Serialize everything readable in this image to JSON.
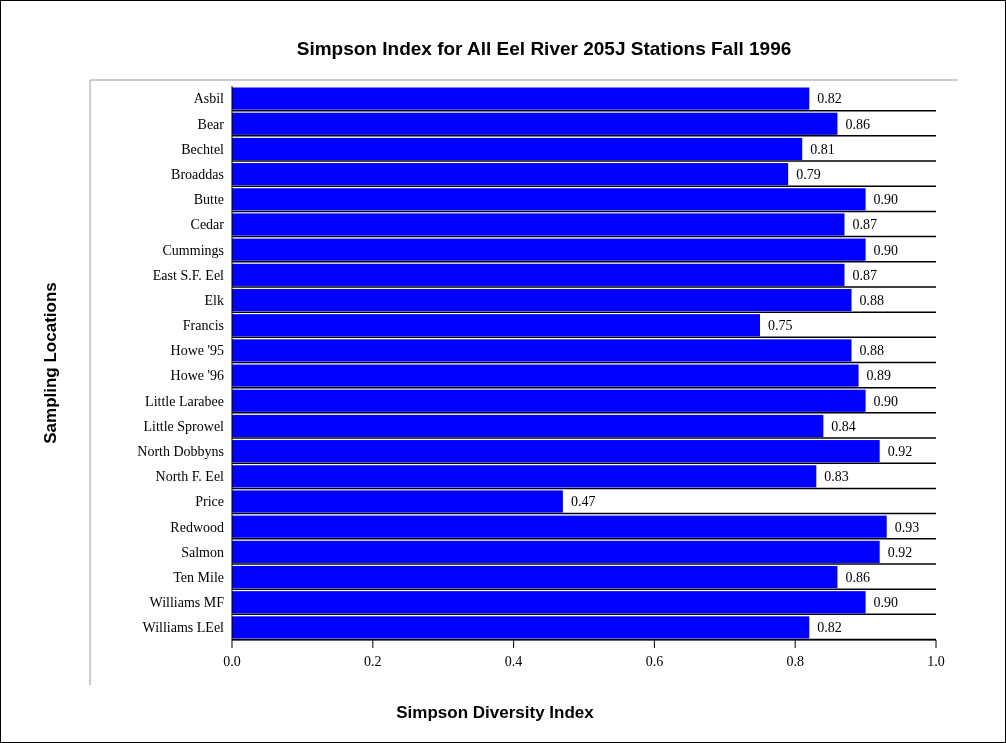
{
  "chart_data": {
    "type": "bar",
    "orientation": "horizontal",
    "title": "Simpson Index for All Eel River 205J Stations Fall 1996",
    "xlabel": "Simpson Diversity Index",
    "ylabel": "Sampling Locations",
    "categories": [
      "Asbil",
      "Bear",
      "Bechtel",
      "Broaddas",
      "Butte",
      "Cedar",
      "Cummings",
      "East S.F. Eel",
      "Elk",
      "Francis",
      "Howe '95",
      "Howe '96",
      "Little Larabee",
      "Little Sprowel",
      "North Dobbyns",
      "North F. Eel",
      "Price",
      "Redwood",
      "Salmon",
      "Ten Mile",
      "Williams MF",
      "Williams LEel"
    ],
    "values": [
      0.82,
      0.86,
      0.81,
      0.79,
      0.9,
      0.87,
      0.9,
      0.87,
      0.88,
      0.75,
      0.88,
      0.89,
      0.9,
      0.84,
      0.92,
      0.83,
      0.47,
      0.93,
      0.92,
      0.86,
      0.9,
      0.82
    ],
    "value_labels": [
      "0.82",
      "0.86",
      "0.81",
      "0.79",
      "0.90",
      "0.87",
      "0.90",
      "0.87",
      "0.88",
      "0.75",
      "0.88",
      "0.89",
      "0.90",
      "0.84",
      "0.92",
      "0.83",
      "0.47",
      "0.93",
      "0.92",
      "0.86",
      "0.90",
      "0.82"
    ],
    "color": "#0000ff",
    "xlim": [
      0,
      1
    ],
    "xticks": [
      {
        "value": 0,
        "label": "0.0"
      },
      {
        "value": 0.2,
        "label": "0.2"
      },
      {
        "value": 0.4,
        "label": "0.4"
      },
      {
        "value": 0.6,
        "label": "0.6"
      },
      {
        "value": 0.8,
        "label": "0.8"
      },
      {
        "value": 1,
        "label": "1.0"
      }
    ],
    "grid": "y"
  }
}
